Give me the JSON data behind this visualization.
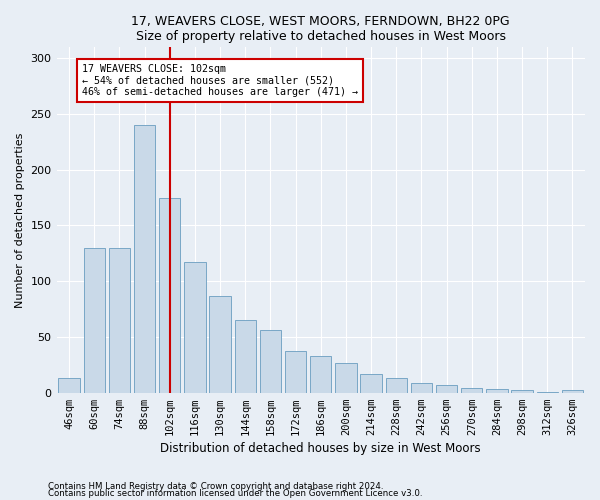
{
  "title": "17, WEAVERS CLOSE, WEST MOORS, FERNDOWN, BH22 0PG",
  "subtitle": "Size of property relative to detached houses in West Moors",
  "xlabel": "Distribution of detached houses by size in West Moors",
  "ylabel": "Number of detached properties",
  "bar_color": "#c9d9e8",
  "bar_edge_color": "#6a9dc0",
  "bins": [
    "46sqm",
    "60sqm",
    "74sqm",
    "88sqm",
    "102sqm",
    "116sqm",
    "130sqm",
    "144sqm",
    "158sqm",
    "172sqm",
    "186sqm",
    "200sqm",
    "214sqm",
    "228sqm",
    "242sqm",
    "256sqm",
    "270sqm",
    "284sqm",
    "298sqm",
    "312sqm",
    "326sqm"
  ],
  "values": [
    13,
    130,
    130,
    240,
    175,
    117,
    87,
    65,
    56,
    37,
    33,
    27,
    17,
    13,
    9,
    7,
    4,
    3,
    2,
    1,
    2
  ],
  "vline_bin_index": 4,
  "vline_color": "#cc0000",
  "annotation_text": "17 WEAVERS CLOSE: 102sqm\n← 54% of detached houses are smaller (552)\n46% of semi-detached houses are larger (471) →",
  "annotation_box_color": "#ffffff",
  "annotation_box_edge_color": "#cc0000",
  "ylim": [
    0,
    310
  ],
  "yticks": [
    0,
    50,
    100,
    150,
    200,
    250,
    300
  ],
  "footer1": "Contains HM Land Registry data © Crown copyright and database right 2024.",
  "footer2": "Contains public sector information licensed under the Open Government Licence v3.0.",
  "bg_color": "#e8eef5",
  "plot_bg_color": "#e8eef5",
  "figsize": [
    6.0,
    5.0
  ],
  "dpi": 100
}
